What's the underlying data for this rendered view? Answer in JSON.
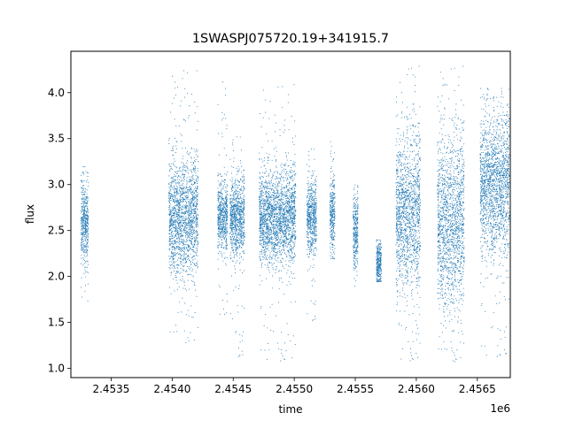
{
  "chart_data": {
    "type": "scatter",
    "title": "1SWASPJ075720.19+341915.7",
    "xlabel": "time",
    "ylabel": "flux",
    "x_offset_label": "1e6",
    "x_scale_note": "x tick labels are in units of 1e6",
    "xlim": [
      2.45317,
      2.45677
    ],
    "ylim": [
      0.9,
      4.45
    ],
    "x_ticks": [
      2.4535,
      2.454,
      2.4545,
      2.455,
      2.4555,
      2.456,
      2.4565
    ],
    "x_tick_labels": [
      "2.4535",
      "2.4540",
      "2.4545",
      "2.4550",
      "2.4555",
      "2.4560",
      "2.4565"
    ],
    "y_ticks": [
      1.0,
      1.5,
      2.0,
      2.5,
      3.0,
      3.5,
      4.0
    ],
    "y_tick_labels": [
      "1.0",
      "1.5",
      "2.0",
      "2.5",
      "3.0",
      "3.5",
      "4.0"
    ],
    "grid": false,
    "legend": "none",
    "marker_color": "#1f77b4",
    "series": [
      {
        "clusters": [
          {
            "x_center": 2.45328,
            "x_halfwidth": 3e-05,
            "y_center": 2.6,
            "y_spread": 0.22,
            "y_min": 1.7,
            "y_max": 3.2
          },
          {
            "x_center": 2.45409,
            "x_halfwidth": 0.00012,
            "y_center": 2.65,
            "y_spread": 0.3,
            "y_min": 1.25,
            "y_max": 4.25
          },
          {
            "x_center": 2.45441,
            "x_halfwidth": 4e-05,
            "y_center": 2.65,
            "y_spread": 0.18,
            "y_min": 1.55,
            "y_max": 4.15
          },
          {
            "x_center": 2.45453,
            "x_halfwidth": 6e-05,
            "y_center": 2.65,
            "y_spread": 0.22,
            "y_min": 1.1,
            "y_max": 3.6
          },
          {
            "x_center": 2.45486,
            "x_halfwidth": 0.00015,
            "y_center": 2.65,
            "y_spread": 0.25,
            "y_min": 1.05,
            "y_max": 4.1
          },
          {
            "x_center": 2.45514,
            "x_halfwidth": 4e-05,
            "y_center": 2.65,
            "y_spread": 0.2,
            "y_min": 1.5,
            "y_max": 3.45
          },
          {
            "x_center": 2.45531,
            "x_halfwidth": 2e-05,
            "y_center": 2.65,
            "y_spread": 0.2,
            "y_min": 2.2,
            "y_max": 3.5
          },
          {
            "x_center": 2.4555,
            "x_halfwidth": 2e-05,
            "y_center": 2.5,
            "y_spread": 0.2,
            "y_min": 1.9,
            "y_max": 3.0
          },
          {
            "x_center": 2.45569,
            "x_halfwidth": 2e-05,
            "y_center": 2.15,
            "y_spread": 0.12,
            "y_min": 1.95,
            "y_max": 2.4
          },
          {
            "x_center": 2.45593,
            "x_halfwidth": 0.0001,
            "y_center": 2.7,
            "y_spread": 0.42,
            "y_min": 1.05,
            "y_max": 4.3
          },
          {
            "x_center": 2.45628,
            "x_halfwidth": 0.00011,
            "y_center": 2.6,
            "y_spread": 0.45,
            "y_min": 1.05,
            "y_max": 4.3
          },
          {
            "x_center": 2.45664,
            "x_halfwidth": 0.00012,
            "y_center": 3.0,
            "y_spread": 0.38,
            "y_min": 1.1,
            "y_max": 4.05
          }
        ]
      }
    ]
  }
}
